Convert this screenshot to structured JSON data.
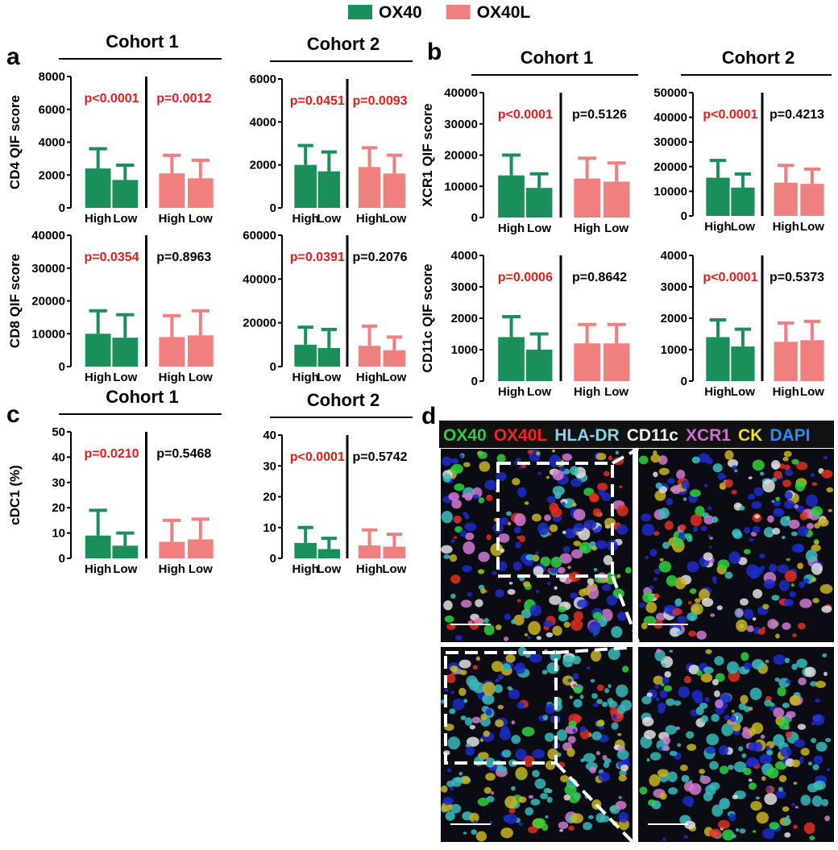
{
  "legend": [
    {
      "name": "OX40",
      "color": "#1b8f5a"
    },
    {
      "name": "OX40L",
      "color": "#f08080"
    }
  ],
  "chart_data": [
    {
      "type": "bar",
      "letter": "a",
      "title": "Cohort 1",
      "ylabel": "CD4 QIF score",
      "categories": [
        "High",
        "Low"
      ],
      "ylim": [
        0,
        8000
      ],
      "yticks": [
        0,
        2000,
        4000,
        6000,
        8000
      ],
      "groups": [
        {
          "values": [
            2400,
            1700
          ],
          "errors": [
            1200,
            900
          ],
          "p_value": "p<0.0001",
          "p_color": "#e02020"
        },
        {
          "values": [
            2100,
            1800
          ],
          "errors": [
            1100,
            1100
          ],
          "p_value": "p=0.0012",
          "p_color": "#e02020"
        }
      ]
    },
    {
      "type": "bar",
      "title": "Cohort 2",
      "categories": [
        "High",
        "Low"
      ],
      "ylim": [
        0,
        6000
      ],
      "yticks": [
        0,
        2000,
        4000,
        6000
      ],
      "groups": [
        {
          "values": [
            2000,
            1700
          ],
          "errors": [
            900,
            900
          ],
          "p_value": "p=0.0451",
          "p_color": "#e02020"
        },
        {
          "values": [
            1900,
            1600
          ],
          "errors": [
            900,
            850
          ],
          "p_value": "p=0.0093",
          "p_color": "#e02020"
        }
      ]
    },
    {
      "type": "bar",
      "ylabel": "CD8 QIF score",
      "categories": [
        "High",
        "Low"
      ],
      "ylim": [
        0,
        40000
      ],
      "yticks": [
        0,
        10000,
        20000,
        30000,
        40000
      ],
      "groups": [
        {
          "values": [
            10000,
            8800
          ],
          "errors": [
            7000,
            7000
          ],
          "p_value": "p=0.0354",
          "p_color": "#e02020"
        },
        {
          "values": [
            9000,
            9500
          ],
          "errors": [
            6500,
            7500
          ],
          "p_value": "p=0.8963",
          "p_color": "#000000"
        }
      ]
    },
    {
      "type": "bar",
      "categories": [
        "High",
        "Low"
      ],
      "ylim": [
        0,
        60000
      ],
      "yticks": [
        0,
        20000,
        40000,
        60000
      ],
      "groups": [
        {
          "values": [
            10000,
            8500
          ],
          "errors": [
            8000,
            8500
          ],
          "p_value": "p=0.0391",
          "p_color": "#e02020"
        },
        {
          "values": [
            9500,
            7500
          ],
          "errors": [
            9000,
            6000
          ],
          "p_value": "p=0.2076",
          "p_color": "#000000"
        }
      ]
    },
    {
      "type": "bar",
      "letter": "b",
      "title": "Cohort 1",
      "ylabel": "XCR1 QIF score",
      "categories": [
        "High",
        "Low"
      ],
      "ylim": [
        0,
        40000
      ],
      "yticks": [
        0,
        10000,
        20000,
        30000,
        40000
      ],
      "groups": [
        {
          "values": [
            13500,
            9500
          ],
          "errors": [
            6500,
            4500
          ],
          "p_value": "p<0.0001",
          "p_color": "#e02020"
        },
        {
          "values": [
            12500,
            11500
          ],
          "errors": [
            6500,
            6000
          ],
          "p_value": "p=0.5126",
          "p_color": "#000000"
        }
      ]
    },
    {
      "type": "bar",
      "title": "Cohort 2",
      "categories": [
        "High",
        "Low"
      ],
      "ylim": [
        0,
        50000
      ],
      "yticks": [
        0,
        10000,
        20000,
        30000,
        40000,
        50000
      ],
      "groups": [
        {
          "values": [
            15500,
            11500
          ],
          "errors": [
            7000,
            5500
          ],
          "p_value": "p<0.0001",
          "p_color": "#e02020"
        },
        {
          "values": [
            13500,
            13000
          ],
          "errors": [
            7000,
            6000
          ],
          "p_value": "p=0.4213",
          "p_color": "#000000"
        }
      ]
    },
    {
      "type": "bar",
      "ylabel": "CD11c QIF score",
      "categories": [
        "High",
        "Low"
      ],
      "ylim": [
        0,
        4000
      ],
      "yticks": [
        0,
        1000,
        2000,
        3000,
        4000
      ],
      "groups": [
        {
          "values": [
            1400,
            1000
          ],
          "errors": [
            650,
            500
          ],
          "p_value": "p=0.0006",
          "p_color": "#e02020"
        },
        {
          "values": [
            1200,
            1200
          ],
          "errors": [
            600,
            600
          ],
          "p_value": "p=0.8642",
          "p_color": "#000000"
        }
      ]
    },
    {
      "type": "bar",
      "categories": [
        "High",
        "Low"
      ],
      "ylim": [
        0,
        4000
      ],
      "yticks": [
        0,
        1000,
        2000,
        3000,
        4000
      ],
      "groups": [
        {
          "values": [
            1400,
            1100
          ],
          "errors": [
            550,
            550
          ],
          "p_value": "p<0.0001",
          "p_color": "#e02020"
        },
        {
          "values": [
            1250,
            1300
          ],
          "errors": [
            600,
            600
          ],
          "p_value": "p=0.5373",
          "p_color": "#000000"
        }
      ]
    },
    {
      "type": "bar",
      "letter": "c",
      "title": "Cohort 1",
      "ylabel": "cDC1 (%)",
      "categories": [
        "High",
        "Low"
      ],
      "ylim": [
        0,
        50
      ],
      "yticks": [
        0,
        10,
        20,
        30,
        40,
        50
      ],
      "groups": [
        {
          "values": [
            9,
            5
          ],
          "errors": [
            10,
            5
          ],
          "p_value": "p=0.0210",
          "p_color": "#e02020"
        },
        {
          "values": [
            6.5,
            7.5
          ],
          "errors": [
            8.5,
            8
          ],
          "p_value": "p=0.5468",
          "p_color": "#000000"
        }
      ]
    },
    {
      "type": "bar",
      "title": "Cohort 2",
      "categories": [
        "High",
        "Low"
      ],
      "ylim": [
        0,
        40
      ],
      "yticks": [
        0,
        10,
        20,
        30,
        40
      ],
      "groups": [
        {
          "values": [
            5,
            3
          ],
          "errors": [
            5,
            3.5
          ],
          "p_value": "p<0.0001",
          "p_color": "#e02020"
        },
        {
          "values": [
            4.2,
            3.8
          ],
          "errors": [
            5,
            4
          ],
          "p_value": "p=0.5742",
          "p_color": "#000000"
        }
      ]
    }
  ],
  "image_panel": {
    "letter": "d",
    "markers": [
      {
        "text": "OX40",
        "color": "#2ecc40"
      },
      {
        "text": "OX40L",
        "color": "#ff2020"
      },
      {
        "text": "HLA-DR",
        "color": "#7fd8e8"
      },
      {
        "text": "CD11c",
        "color": "#f0f0f0"
      },
      {
        "text": "XCR1",
        "color": "#d070d0"
      },
      {
        "text": "CK",
        "color": "#f0e020"
      },
      {
        "text": "DAPI",
        "color": "#1e90ff"
      }
    ]
  }
}
